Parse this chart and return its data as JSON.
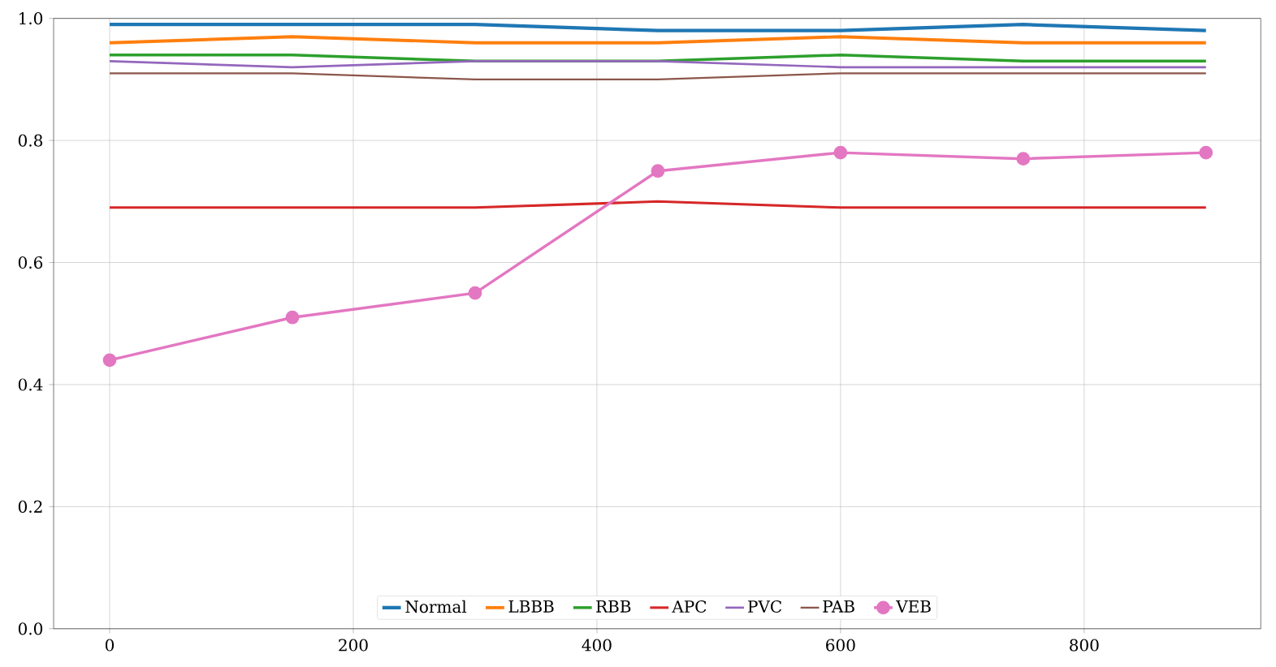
{
  "chart_data": {
    "type": "line",
    "x": [
      0,
      150,
      300,
      450,
      600,
      750,
      900
    ],
    "series": [
      {
        "name": "Normal",
        "color": "#1f77b4",
        "values": [
          0.99,
          0.99,
          0.99,
          0.98,
          0.98,
          0.99,
          0.98
        ]
      },
      {
        "name": "LBBB",
        "color": "#ff7f0e",
        "values": [
          0.96,
          0.97,
          0.96,
          0.96,
          0.97,
          0.96,
          0.96
        ]
      },
      {
        "name": "RBB",
        "color": "#2ca02c",
        "values": [
          0.94,
          0.94,
          0.93,
          0.93,
          0.94,
          0.93,
          0.93
        ]
      },
      {
        "name": "APC",
        "color": "#d62728",
        "values": [
          0.69,
          0.69,
          0.69,
          0.7,
          0.69,
          0.69,
          0.69
        ]
      },
      {
        "name": "PVC",
        "color": "#9467bd",
        "values": [
          0.93,
          0.92,
          0.93,
          0.93,
          0.92,
          0.92,
          0.92
        ]
      },
      {
        "name": "PAB",
        "color": "#8c564b",
        "values": [
          0.91,
          0.91,
          0.9,
          0.9,
          0.91,
          0.91,
          0.91
        ]
      },
      {
        "name": "VEB",
        "color": "#e377c2",
        "marker": "circle",
        "values": [
          0.44,
          0.51,
          0.55,
          0.75,
          0.78,
          0.77,
          0.78
        ]
      }
    ],
    "xlim": [
      -46,
      945
    ],
    "xticks": [
      0,
      200,
      400,
      600,
      800
    ],
    "ylim": [
      0,
      1
    ],
    "yticks": [
      {
        "value": 0,
        "label": "0.0"
      },
      {
        "value": 0.2,
        "label": "0.2"
      },
      {
        "value": 0.4,
        "label": "0.4"
      },
      {
        "value": 0.6,
        "label": "0.6"
      },
      {
        "value": 0.8,
        "label": "0.8"
      },
      {
        "value": 1,
        "label": "1.0"
      }
    ],
    "grid": true,
    "legend": "bottom"
  }
}
